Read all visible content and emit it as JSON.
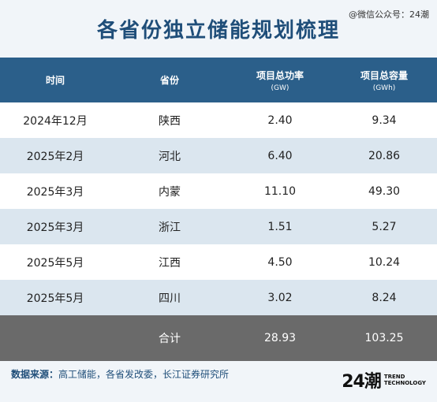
{
  "watermark": "@微信公众号：24潮",
  "title": "各省份独立储能规划梳理",
  "table": {
    "headers": [
      {
        "label": "时间",
        "unit": ""
      },
      {
        "label": "省份",
        "unit": ""
      },
      {
        "label": "项目总功率",
        "unit": "(GW)"
      },
      {
        "label": "项目总容量",
        "unit": "(GWh)"
      }
    ],
    "rows": [
      {
        "time": "2024年12月",
        "province": "陕西",
        "power": "2.40",
        "capacity": "9.34"
      },
      {
        "time": "2025年2月",
        "province": "河北",
        "power": "6.40",
        "capacity": "20.86"
      },
      {
        "time": "2025年3月",
        "province": "内蒙",
        "power": "11.10",
        "capacity": "49.30"
      },
      {
        "time": "2025年3月",
        "province": "浙江",
        "power": "1.51",
        "capacity": "5.27"
      },
      {
        "time": "2025年5月",
        "province": "江西",
        "power": "4.50",
        "capacity": "10.24"
      },
      {
        "time": "2025年5月",
        "province": "四川",
        "power": "3.02",
        "capacity": "8.24"
      }
    ],
    "total": {
      "label": "合计",
      "power": "28.93",
      "capacity": "103.25"
    }
  },
  "footer": {
    "source_label": "数据来源：",
    "source_text": "高工储能，各省发改委，长江证券研究所"
  },
  "brand": {
    "logo": "24潮",
    "line1": "TREND",
    "line2": "TECHNOLOGY"
  },
  "colors": {
    "header_bg": "#2b5f8a",
    "title": "#1f4e79",
    "stripe": "#dbe6ef",
    "total_bg": "#6a6a6a"
  }
}
